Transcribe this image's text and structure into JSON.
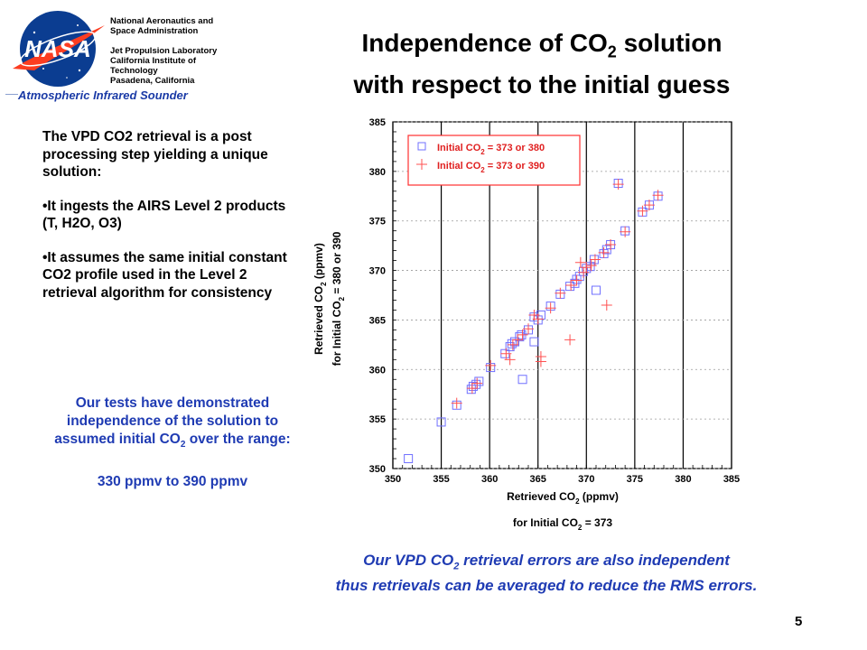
{
  "header": {
    "org_lines": [
      "National Aeronautics and",
      "Space Administration",
      "",
      "Jet Propulsion Laboratory",
      "California Institute of",
      "Technology",
      "Pasadena, California"
    ],
    "instrument": "Atmospheric Infrared Sounder",
    "logo_text": "NASA",
    "title_line1_pre": "Independence of CO",
    "title_line1_sub": "2",
    "title_line1_post": " solution",
    "title_line2": "with respect to the initial guess"
  },
  "left_text": {
    "intro": "The VPD CO2 retrieval is a post processing step yielding a unique solution:",
    "bullet1": "•It ingests the AIRS Level 2 products (T, H2O, O3)",
    "bullet2": "•It assumes the same initial constant CO2 profile used in the Level 2 retrieval algorithm for consistency",
    "tests_line1": "Our tests have demonstrated",
    "tests_line2": "independence of the solution to",
    "tests_line3_pre": "assumed initial CO",
    "tests_line3_sub": "2",
    "tests_line3_post": " over the range:",
    "range": "330 ppmv to 390 ppmv"
  },
  "bottom_note": {
    "line1_pre": "Our VPD CO",
    "line1_sub": "2",
    "line1_post": " retrieval errors are also independent",
    "line2": "thus retrievals can be averaged to reduce the RMS errors."
  },
  "page_number": "5",
  "chart_data": {
    "type": "scatter",
    "x_ticks": [
      "350",
      "355",
      "360",
      "365",
      "370",
      "375",
      "380",
      "385"
    ],
    "y_ticks": [
      "350",
      "355",
      "360",
      "365",
      "370",
      "375",
      "380",
      "385"
    ],
    "xlim": [
      350,
      385
    ],
    "ylim": [
      350,
      385
    ],
    "xlabel_line1_pre": "Retrieved CO",
    "xlabel_line1_sub": "2",
    "xlabel_line1_post": " (ppmv)",
    "xlabel_line2_pre": "for Initial CO",
    "xlabel_line2_sub": "2",
    "xlabel_line2_post": " = 373",
    "ylabel_line1_pre": "Retrieved CO",
    "ylabel_line1_sub": "2",
    "ylabel_line1_post": "  (ppmv)",
    "ylabel_line2_pre": "for Initial CO",
    "ylabel_line2_sub": "2",
    "ylabel_line2_post": " = 380 or 390",
    "grid": true,
    "legend_position": "top-left",
    "colors": {
      "square": "#7070ff",
      "plus": "#ff5050",
      "legend_text": "#e02020",
      "legend_border": "#ff3030"
    },
    "series": [
      {
        "name_pre": "Initial CO",
        "name_sub": "2",
        "name_post": " = 373 or 380",
        "marker": "square",
        "points": [
          [
            351.6,
            351.0
          ],
          [
            355.0,
            354.7
          ],
          [
            356.6,
            356.4
          ],
          [
            358.1,
            358.0
          ],
          [
            358.3,
            358.3
          ],
          [
            358.6,
            358.5
          ],
          [
            358.9,
            358.8
          ],
          [
            360.1,
            360.2
          ],
          [
            361.6,
            361.6
          ],
          [
            362.1,
            362.3
          ],
          [
            362.3,
            362.6
          ],
          [
            362.6,
            362.8
          ],
          [
            363.1,
            363.3
          ],
          [
            363.3,
            363.5
          ],
          [
            363.4,
            359.0
          ],
          [
            364.0,
            364.0
          ],
          [
            364.6,
            365.3
          ],
          [
            364.6,
            362.8
          ],
          [
            365.0,
            365.0
          ],
          [
            365.3,
            365.5
          ],
          [
            366.3,
            366.4
          ],
          [
            367.3,
            367.6
          ],
          [
            368.3,
            368.4
          ],
          [
            368.8,
            368.7
          ],
          [
            369.0,
            369.1
          ],
          [
            369.3,
            369.4
          ],
          [
            369.7,
            369.9
          ],
          [
            370.0,
            370.2
          ],
          [
            370.4,
            370.4
          ],
          [
            370.8,
            371.1
          ],
          [
            371.0,
            368.0
          ],
          [
            371.8,
            371.7
          ],
          [
            372.1,
            372.1
          ],
          [
            372.5,
            372.6
          ],
          [
            373.3,
            378.8
          ],
          [
            374.0,
            374.0
          ],
          [
            375.8,
            375.9
          ],
          [
            376.5,
            376.6
          ],
          [
            377.4,
            377.5
          ]
        ]
      },
      {
        "name_pre": "Initial CO",
        "name_sub": "2",
        "name_post": " = 373 or 390",
        "marker": "plus",
        "points": [
          [
            356.6,
            356.6
          ],
          [
            358.2,
            358.1
          ],
          [
            358.7,
            358.6
          ],
          [
            360.1,
            360.4
          ],
          [
            361.7,
            361.6
          ],
          [
            362.1,
            361.0
          ],
          [
            362.4,
            362.5
          ],
          [
            362.9,
            363.0
          ],
          [
            363.4,
            363.5
          ],
          [
            364.0,
            364.1
          ],
          [
            364.6,
            365.5
          ],
          [
            365.0,
            365.1
          ],
          [
            365.3,
            361.3
          ],
          [
            365.3,
            360.8
          ],
          [
            366.3,
            366.2
          ],
          [
            367.3,
            367.7
          ],
          [
            368.3,
            363.0
          ],
          [
            368.4,
            368.5
          ],
          [
            369.0,
            369.0
          ],
          [
            369.4,
            370.8
          ],
          [
            369.7,
            369.8
          ],
          [
            370.0,
            370.3
          ],
          [
            370.5,
            370.5
          ],
          [
            370.9,
            371.1
          ],
          [
            371.8,
            371.8
          ],
          [
            372.1,
            366.5
          ],
          [
            372.5,
            372.6
          ],
          [
            373.3,
            378.7
          ],
          [
            374.0,
            373.9
          ],
          [
            375.8,
            376.0
          ],
          [
            376.5,
            376.6
          ],
          [
            377.4,
            377.6
          ]
        ]
      }
    ]
  }
}
